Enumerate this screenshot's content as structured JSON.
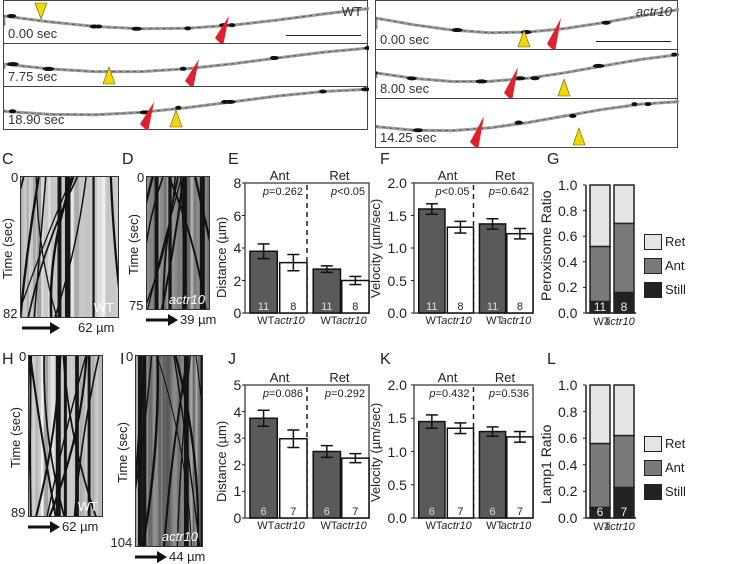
{
  "figure": {
    "panel_labels": [
      "A",
      "B",
      "C",
      "D",
      "E",
      "F",
      "G",
      "H",
      "I",
      "J",
      "K",
      "L"
    ],
    "panelA": {
      "genotype": "WT",
      "frames": [
        {
          "time": "0.00 sec",
          "yellow_x": 37,
          "red_x": 225
        },
        {
          "time": "7.75 sec",
          "yellow_x": 105,
          "red_x": 195
        },
        {
          "time": "18.90 sec",
          "yellow_x": 172,
          "red_x": 150
        }
      ],
      "scale_bar": true
    },
    "panelB": {
      "genotype": "actr10",
      "frames": [
        {
          "time": "0.00 sec",
          "yellow_x": 148,
          "red_x": 185
        },
        {
          "time": "8.00 sec",
          "yellow_x": 188,
          "red_x": 142
        },
        {
          "time": "14.25 sec",
          "yellow_x": 203,
          "red_x": 108
        }
      ],
      "scale_bar": true
    },
    "panelC": {
      "y_label": "Time (sec)",
      "y_start": "0",
      "y_end": "82",
      "genotype": "WT",
      "scale": "62 µm"
    },
    "panelD": {
      "y_label": "Time (sec)",
      "y_start": "0",
      "y_end": "75",
      "genotype": "actr10",
      "scale": "39 µm"
    },
    "panelH": {
      "y_label": "Time (sec)",
      "y_start": "0",
      "y_end": "89",
      "genotype": "WT",
      "scale": "62 µm"
    },
    "panelI": {
      "y_label": "Time (sec)",
      "y_start": "0",
      "y_end": "104",
      "genotype": "actr10",
      "scale": "44 µm"
    },
    "colors": {
      "wt_bar": "#5a5a5a",
      "actr10_bar": "#ffffff",
      "ret": "#e4e4e4",
      "ant": "#7a7a7a",
      "still": "#222222",
      "yellow_arrow": "#f2d800",
      "red_arrow": "#e0212b"
    }
  },
  "chart_data": [
    {
      "panel": "E",
      "type": "bar",
      "title": "",
      "ylabel": "Distance (µm)",
      "ylim": [
        0,
        8
      ],
      "yticks": [
        "0",
        "2",
        "4",
        "6",
        "8"
      ],
      "groups": [
        "Ant",
        "Ret"
      ],
      "categories": [
        "WT",
        "actr10",
        "WT",
        "actr10"
      ],
      "values": [
        3.8,
        3.1,
        2.7,
        2.0
      ],
      "errors": [
        0.45,
        0.5,
        0.2,
        0.25
      ],
      "n": [
        "11",
        "8",
        "11",
        "8"
      ],
      "pvalues": [
        "p=0.262",
        "p<0.05"
      ]
    },
    {
      "panel": "F",
      "type": "bar",
      "ylabel": "Velocity (µm/sec)",
      "ylim": [
        0,
        2.0
      ],
      "yticks": [
        "0.0",
        "0.5",
        "1.0",
        "1.5",
        "2.0"
      ],
      "groups": [
        "Ant",
        "Ret"
      ],
      "categories": [
        "WT",
        "actr10",
        "WT",
        "actr10"
      ],
      "values": [
        1.6,
        1.32,
        1.37,
        1.22
      ],
      "errors": [
        0.08,
        0.09,
        0.08,
        0.08
      ],
      "n": [
        "11",
        "8",
        "11",
        "8"
      ],
      "pvalues": [
        "p<0.05",
        "p=0.642"
      ]
    },
    {
      "panel": "G",
      "type": "bar",
      "stacked": true,
      "ylabel": "Peroxisome Ratio",
      "ylim": [
        0,
        1.0
      ],
      "yticks": [
        "0.0",
        "0.2",
        "0.4",
        "0.6",
        "0.8",
        "1.0"
      ],
      "categories": [
        "WT",
        "actr10"
      ],
      "series": [
        {
          "name": "Still",
          "values": [
            0.09,
            0.16
          ]
        },
        {
          "name": "Ant",
          "values": [
            0.43,
            0.54
          ]
        },
        {
          "name": "Ret",
          "values": [
            0.48,
            0.3
          ]
        }
      ],
      "n": [
        "11",
        "8"
      ],
      "legend": [
        "Ret",
        "Ant",
        "Still"
      ]
    },
    {
      "panel": "J",
      "type": "bar",
      "ylabel": "Distance (µm)",
      "ylim": [
        0,
        5
      ],
      "yticks": [
        "0",
        "1",
        "2",
        "3",
        "4",
        "5"
      ],
      "groups": [
        "Ant",
        "Ret"
      ],
      "categories": [
        "WT",
        "actr10",
        "WT",
        "actr10"
      ],
      "values": [
        3.75,
        2.98,
        2.5,
        2.25
      ],
      "errors": [
        0.3,
        0.33,
        0.22,
        0.17
      ],
      "n": [
        "6",
        "7",
        "6",
        "7"
      ],
      "pvalues": [
        "p=0.086",
        "p=0.292"
      ]
    },
    {
      "panel": "K",
      "type": "bar",
      "ylabel": "Velocity (µm/sec)",
      "ylim": [
        0,
        2.0
      ],
      "yticks": [
        "0.0",
        "0.5",
        "1.0",
        "1.5",
        "2.0"
      ],
      "groups": [
        "Ant",
        "Ret"
      ],
      "categories": [
        "WT",
        "actr10",
        "WT",
        "actr10"
      ],
      "values": [
        1.45,
        1.35,
        1.3,
        1.22
      ],
      "errors": [
        0.1,
        0.08,
        0.07,
        0.08
      ],
      "n": [
        "6",
        "7",
        "6",
        "7"
      ],
      "pvalues": [
        "p=0.432",
        "p=0.536"
      ]
    },
    {
      "panel": "L",
      "type": "bar",
      "stacked": true,
      "ylabel": "Lamp1 Ratio",
      "ylim": [
        0,
        1.0
      ],
      "yticks": [
        "0.0",
        "0.2",
        "0.4",
        "0.6",
        "0.8",
        "1.0"
      ],
      "categories": [
        "WT",
        "actr10"
      ],
      "series": [
        {
          "name": "Still",
          "values": [
            0.08,
            0.23
          ]
        },
        {
          "name": "Ant",
          "values": [
            0.48,
            0.39
          ]
        },
        {
          "name": "Ret",
          "values": [
            0.44,
            0.38
          ]
        }
      ],
      "n": [
        "6",
        "7"
      ],
      "legend": [
        "Ret",
        "Ant",
        "Still"
      ]
    }
  ]
}
